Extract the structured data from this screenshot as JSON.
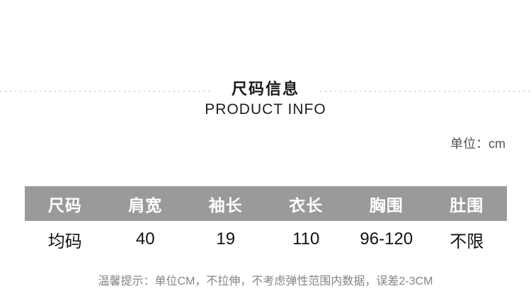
{
  "header": {
    "title_cn": "尺码信息",
    "title_en": "PRODUCT INFO",
    "unit_label": "单位：cm"
  },
  "size_table": {
    "headers": [
      "尺码",
      "肩宽",
      "袖长",
      "衣长",
      "胸围",
      "肚围"
    ],
    "rows": [
      [
        "均码",
        "40",
        "19",
        "110",
        "96-120",
        "不限"
      ]
    ]
  },
  "note": "温馨提示：单位CM，不拉伸，不考虑弹性范围内数据，误差2-3CM",
  "colors": {
    "header_bg": "#9a9a9a",
    "header_text": "#ffffff",
    "title_text": "#1a1a1a",
    "data_text": "#111111",
    "note_text": "#848484",
    "unit_text": "#555555",
    "dash": "#d9d9d9",
    "page_bg": "#ffffff"
  }
}
